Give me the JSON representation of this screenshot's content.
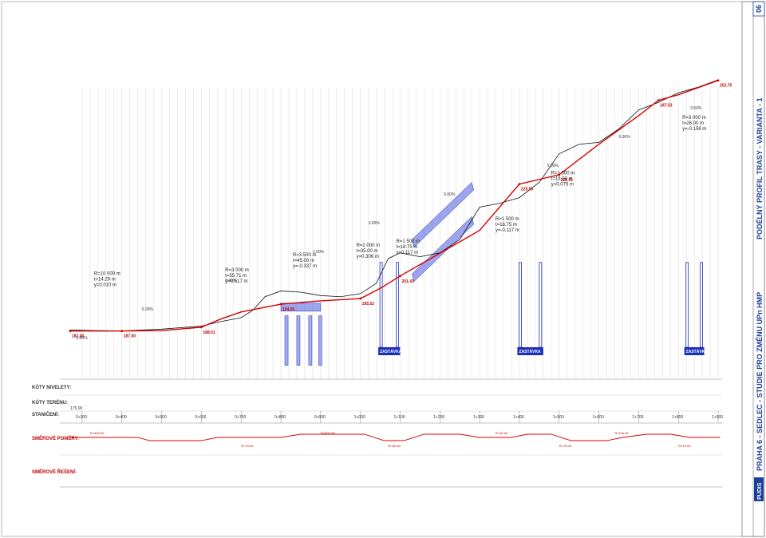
{
  "sheet": {
    "title": "PRAHA 6 - SEDLEC - STUDIE PRO ZMĚNU UPn HMP",
    "subtitle": "PODÉLNÝ PROFIL TRASY - VARIANTA - 1",
    "sheet_number": "06",
    "company": "PUDIS"
  },
  "row_labels": {
    "niveleta": "KÓTY NIVELETY:",
    "teren": "KÓTY TERÉNU:",
    "staniceni": "STANIČENÍ:",
    "smerove_pomery": "SMĚROVÉ POMĚRY:",
    "smerove_reseni": "SMĚROVÉ ŘEŠENÍ:"
  },
  "reference_level": "175.00",
  "stations": [
    "0+300",
    "0+400",
    "0+500",
    "0+600",
    "0+700",
    "0+800",
    "0+900",
    "1+000",
    "1+100",
    "1+200",
    "1+300",
    "1+400",
    "1+500",
    "1+600",
    "1+700",
    "1+800",
    "1+900"
  ],
  "stop_label": "ZASTÁVKA",
  "elevation_labels": [
    "187.00",
    "187.00",
    "188.01",
    "194.05",
    "195.52",
    "201.43",
    "225.55",
    "228.01",
    "247.53",
    "252.75"
  ],
  "curve_params": [
    {
      "r": "R=10 000 m",
      "t": "t=14.29 m",
      "y": "y=0.010 m"
    },
    {
      "r": "R=3 000 m",
      "t": "t=55.71 m",
      "y": "y=0.517 m"
    },
    {
      "r": "R=3 500 m",
      "t": "t=45.00 m",
      "y": "y=-0.337 m"
    },
    {
      "r": "R=2 000 m",
      "t": "t=35.00 m",
      "y": "y=0.306 m"
    },
    {
      "r": "R=1 500 m",
      "t": "t=18.75 m",
      "y": "y=0.117 m"
    },
    {
      "r": "R=1 500 m",
      "t": "t=18.75 m",
      "y": "y=-0.117 m"
    },
    {
      "r": "R=1 500 m",
      "t": "t=15.00 m",
      "y": "y=0.075 m"
    },
    {
      "r": "R=3 000 m",
      "t": "t=26.00 m",
      "y": "y=-0.156 m"
    }
  ],
  "gradients": [
    "0.00%",
    "0.20%",
    "3.00%",
    "1.00%",
    "3.00%",
    "6.00%",
    "5.00%",
    "6.00%",
    "3.50%"
  ],
  "radii_labels": [
    "R=400.00",
    "R=75.00",
    "R=500.00",
    "R=80.00",
    "R=60.00",
    "R=75.00",
    "R=110.00",
    "R=75.00"
  ],
  "chart_data": {
    "type": "line",
    "title": "",
    "xlabel": "STANIČENÍ",
    "ylabel": "",
    "x_unit": "stationing (km+m)",
    "series": [
      {
        "name": "",
        "x": [
          270,
          300,
          400,
          500,
          600,
          650,
          700,
          800,
          850,
          900,
          1000,
          1050,
          1100,
          1200,
          1300,
          1400,
          1500,
          1600,
          1700,
          1750,
          1800,
          1900
        ],
        "y": [
          187.0,
          187.0,
          187.0,
          187.1,
          188.01,
          190.2,
          192.0,
          194.05,
          194.5,
          194.9,
          195.52,
          198.2,
          201.43,
          207.4,
          213.4,
          225.55,
          228.01,
          236.0,
          243.5,
          247.53,
          249.0,
          252.75
        ]
      },
      {
        "name": "",
        "x": [
          270,
          300,
          400,
          500,
          600,
          650,
          700,
          730,
          760,
          800,
          850,
          900,
          950,
          1000,
          1040,
          1070,
          1100,
          1150,
          1200,
          1250,
          1300,
          1350,
          1400,
          1450,
          1500,
          1550,
          1600,
          1650,
          1700,
          1750,
          1800,
          1850,
          1900
        ],
        "y": [
          187.3,
          187.2,
          187.0,
          187.5,
          188.3,
          189.5,
          190.5,
          192.5,
          196.0,
          197.5,
          197.2,
          196.3,
          196.0,
          196.8,
          199.5,
          206.0,
          207.5,
          206.5,
          207.5,
          211.0,
          219.5,
          220.5,
          222.0,
          226.0,
          233.5,
          236.0,
          236.5,
          240.0,
          245.0,
          247.0,
          249.5,
          251.0,
          252.9
        ]
      }
    ],
    "ylim": [
      175,
      255
    ]
  }
}
